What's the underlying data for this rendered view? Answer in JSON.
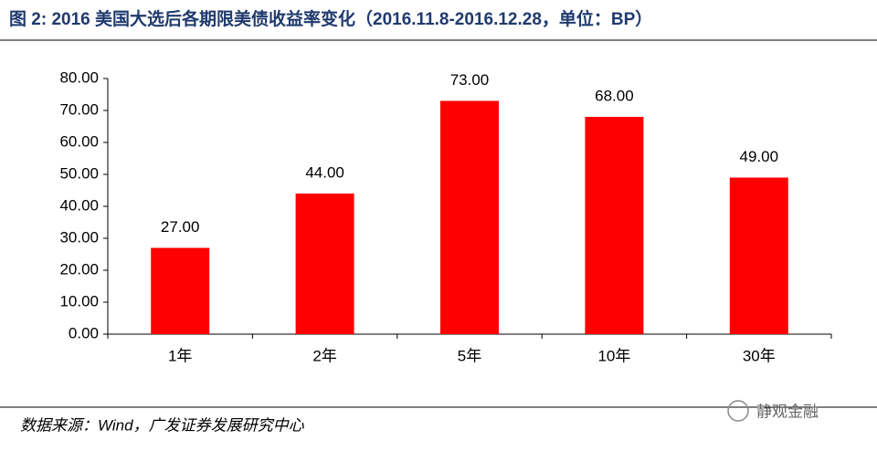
{
  "chart_data": {
    "type": "bar",
    "title": "图 2: 2016 美国大选后各期限美债收益率变化（2016.11.8-2016.12.28，单位：BP）",
    "categories": [
      "1年",
      "2年",
      "5年",
      "10年",
      "30年"
    ],
    "values": [
      27,
      44,
      73,
      68,
      49
    ],
    "value_labels": [
      "27.00",
      "44.00",
      "73.00",
      "68.00",
      "49.00"
    ],
    "color": "#ff0000",
    "ylim": [
      0,
      80
    ],
    "yticks": [
      {
        "value": 0,
        "label": "0.00"
      },
      {
        "value": 10,
        "label": "10.00"
      },
      {
        "value": 20,
        "label": "20.00"
      },
      {
        "value": 30,
        "label": "30.00"
      },
      {
        "value": 40,
        "label": "40.00"
      },
      {
        "value": 50,
        "label": "50.00"
      },
      {
        "value": 60,
        "label": "60.00"
      },
      {
        "value": 70,
        "label": "70.00"
      },
      {
        "value": 80,
        "label": "80.00"
      }
    ],
    "grid": false,
    "source": "数据来源：Wind，广发证券发展研究中心",
    "watermark": "静观金融"
  }
}
